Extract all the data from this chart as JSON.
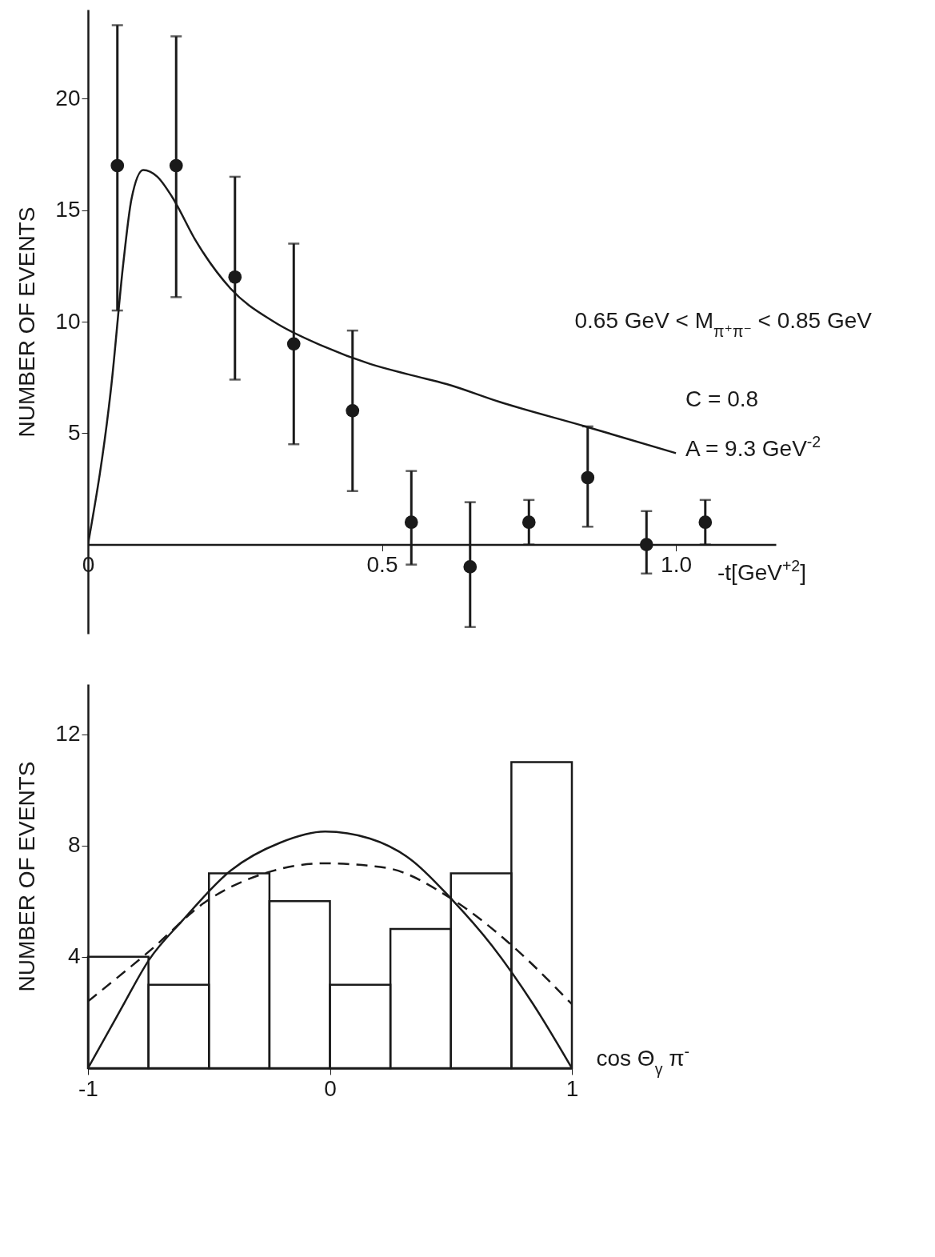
{
  "chart_data": [
    {
      "type": "scatter",
      "ylabel": "NUMBER OF EVENTS",
      "xlabel": "-t[GeV$^{+2}$]",
      "x": [
        0.05,
        0.15,
        0.25,
        0.35,
        0.45,
        0.55,
        0.65,
        0.75,
        0.85,
        0.95,
        1.05
      ],
      "series": [
        {
          "color": "#1a1a1a",
          "marker": "circle",
          "values": [
            17,
            17,
            12,
            9,
            6,
            1,
            -1,
            1,
            3,
            0,
            1
          ],
          "errors": [
            [
              10.5,
              23.3
            ],
            [
              11.1,
              22.8
            ],
            [
              7.4,
              16.5
            ],
            [
              4.5,
              13.5
            ],
            [
              2.4,
              9.6
            ],
            [
              -0.9,
              3.3
            ],
            [
              -3.7,
              1.9
            ],
            [
              0,
              2
            ],
            [
              0.8,
              5.3
            ],
            [
              -1.3,
              1.5
            ],
            [
              0,
              2
            ]
          ]
        },
        {
          "type": "line",
          "color": "#1a1a1a",
          "x": [
            0,
            0.04,
            0.06,
            0.074,
            0.094,
            0.118,
            0.143,
            0.184,
            0.242,
            0.316,
            0.4,
            0.48,
            0.55,
            0.61,
            0.7,
            0.846,
            1.0
          ],
          "values": [
            0,
            7.2,
            12.6,
            15.5,
            16.8,
            16.5,
            15.6,
            13.6,
            11.5,
            10.0,
            8.9,
            8.1,
            7.6,
            7.2,
            6.4,
            5.3,
            4.1
          ]
        }
      ],
      "xlim": [
        0,
        1.17
      ],
      "xticks": [
        0,
        0.5,
        {
          "value": 1,
          "label": "1.0"
        }
      ],
      "ylim": [
        -4,
        24
      ],
      "yticks": [
        5,
        10,
        15,
        20
      ],
      "grid": false,
      "annotations": [
        "0.65 GeV < M$_{π⁺π⁻}$ < 0.85 GeV",
        "C = 0.8",
        "A = 9.3 GeV$^{-2}$"
      ]
    },
    {
      "type": "histogram",
      "ylabel": "NUMBER OF EVENTS",
      "xlabel": "cos Θ$_{γ}$ π$^{-}$",
      "series": [
        {
          "color": "#1a1a1a",
          "bins": [
            -1,
            -0.75,
            -0.5,
            -0.25,
            0,
            0.25,
            0.5,
            0.75,
            1
          ],
          "values": [
            4,
            3,
            7,
            6,
            3,
            5,
            7,
            11
          ]
        },
        {
          "type": "line",
          "color": "#1a1a1a",
          "line_style": "solid",
          "x": [
            -1,
            -0.865,
            -0.747,
            -0.61,
            -0.41,
            -0.206,
            -0.02,
            0.165,
            0.334,
            0.5,
            0.67,
            0.84,
            1
          ],
          "values": [
            0,
            2.1,
            3.9,
            5.3,
            7.1,
            8.1,
            8.5,
            8.25,
            7.5,
            6.1,
            4.4,
            2.3,
            0
          ]
        },
        {
          "type": "line",
          "color": "#1a1a1a",
          "line_style": "dashed",
          "x": [
            -1,
            -0.747,
            -0.51,
            -0.27,
            -0.02,
            0.23,
            0.5,
            0.74,
            1
          ],
          "values": [
            2.4,
            4.2,
            6.0,
            7.0,
            7.36,
            7.2,
            6.1,
            4.5,
            2.3
          ]
        }
      ],
      "xlim": [
        -1,
        1
      ],
      "xticks": [
        -1,
        0,
        1
      ],
      "ylim": [
        0,
        13.8
      ],
      "yticks": [
        4,
        8,
        12
      ],
      "grid": false
    }
  ]
}
